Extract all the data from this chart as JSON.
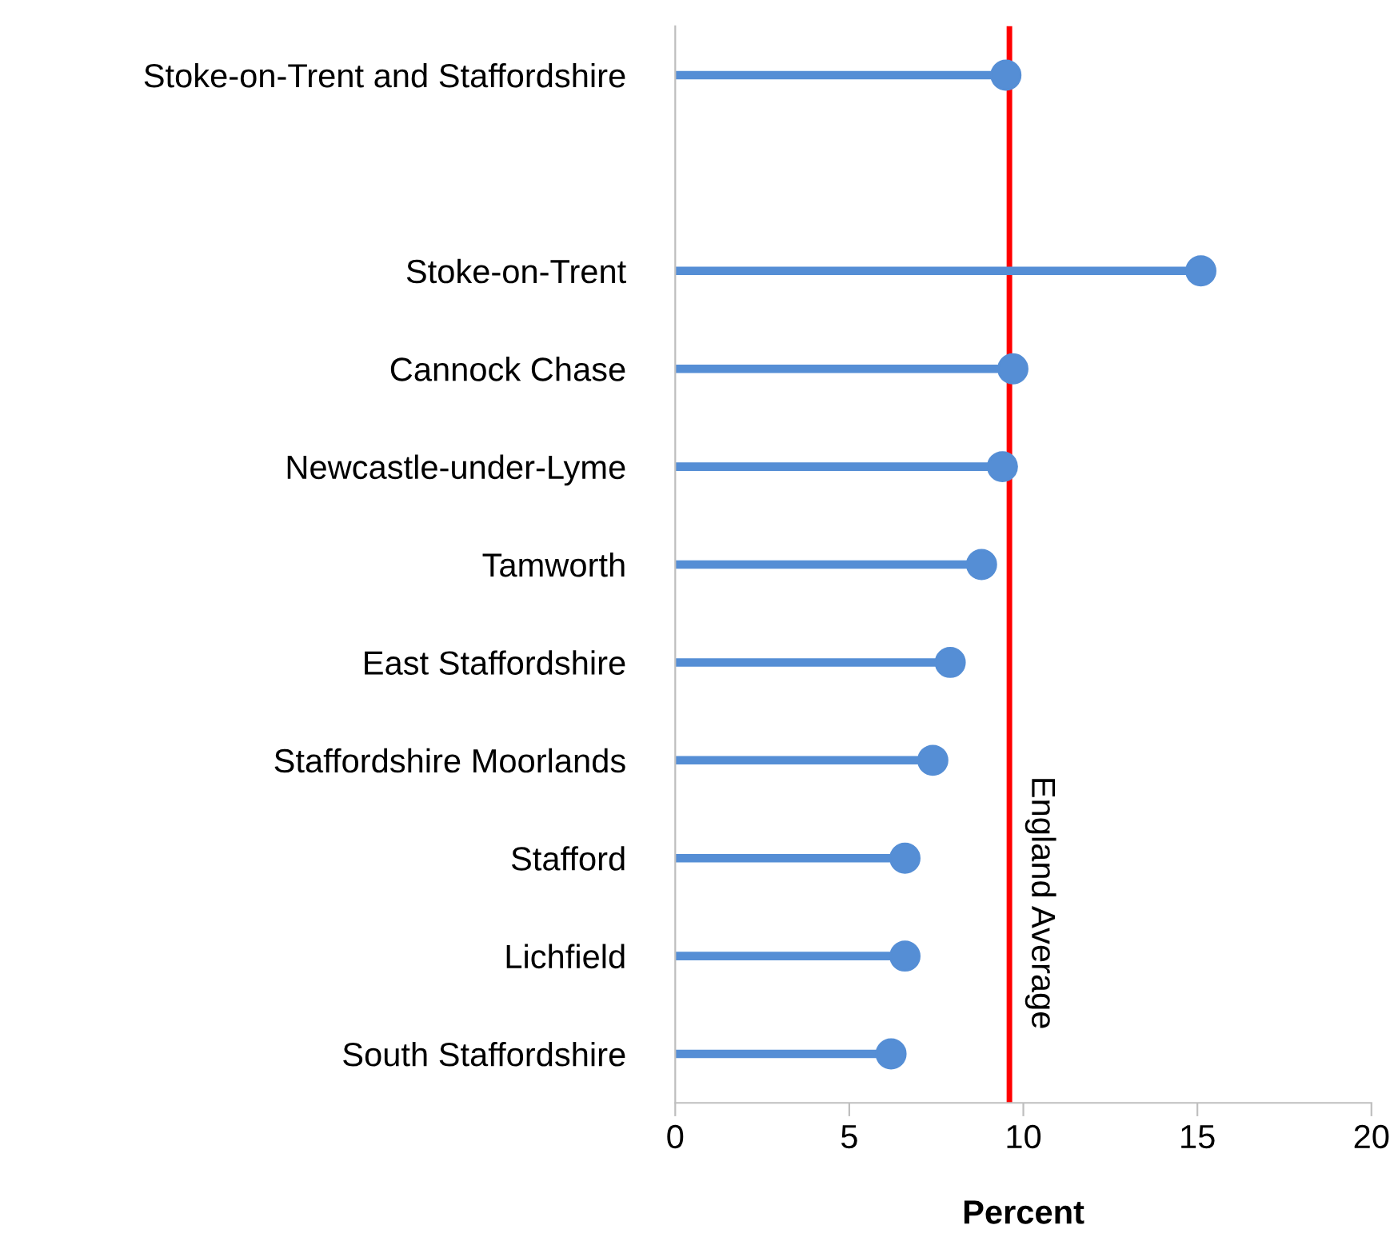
{
  "chart_data": {
    "type": "lollipop",
    "orientation": "horizontal",
    "xlabel": "Percent",
    "categories": [
      "Stoke-on-Trent and Staffordshire",
      null,
      "Stoke-on-Trent",
      "Cannock Chase",
      "Newcastle-under-Lyme",
      "Tamworth",
      "East Staffordshire",
      "Staffordshire Moorlands",
      "Stafford",
      "Lichfield",
      "South Staffordshire"
    ],
    "values": [
      9.5,
      null,
      15.1,
      9.7,
      9.4,
      8.8,
      7.9,
      7.4,
      6.6,
      6.6,
      6.2
    ],
    "color": "#558ed5",
    "marker": "circle",
    "xlim": [
      0,
      20
    ],
    "xticks": [
      0,
      5,
      10,
      15,
      20
    ],
    "grid": false,
    "legend": false,
    "ref_lines": [
      {
        "axis": "x",
        "value": 9.6,
        "label": "England Average",
        "color": "#ff0000"
      }
    ]
  }
}
